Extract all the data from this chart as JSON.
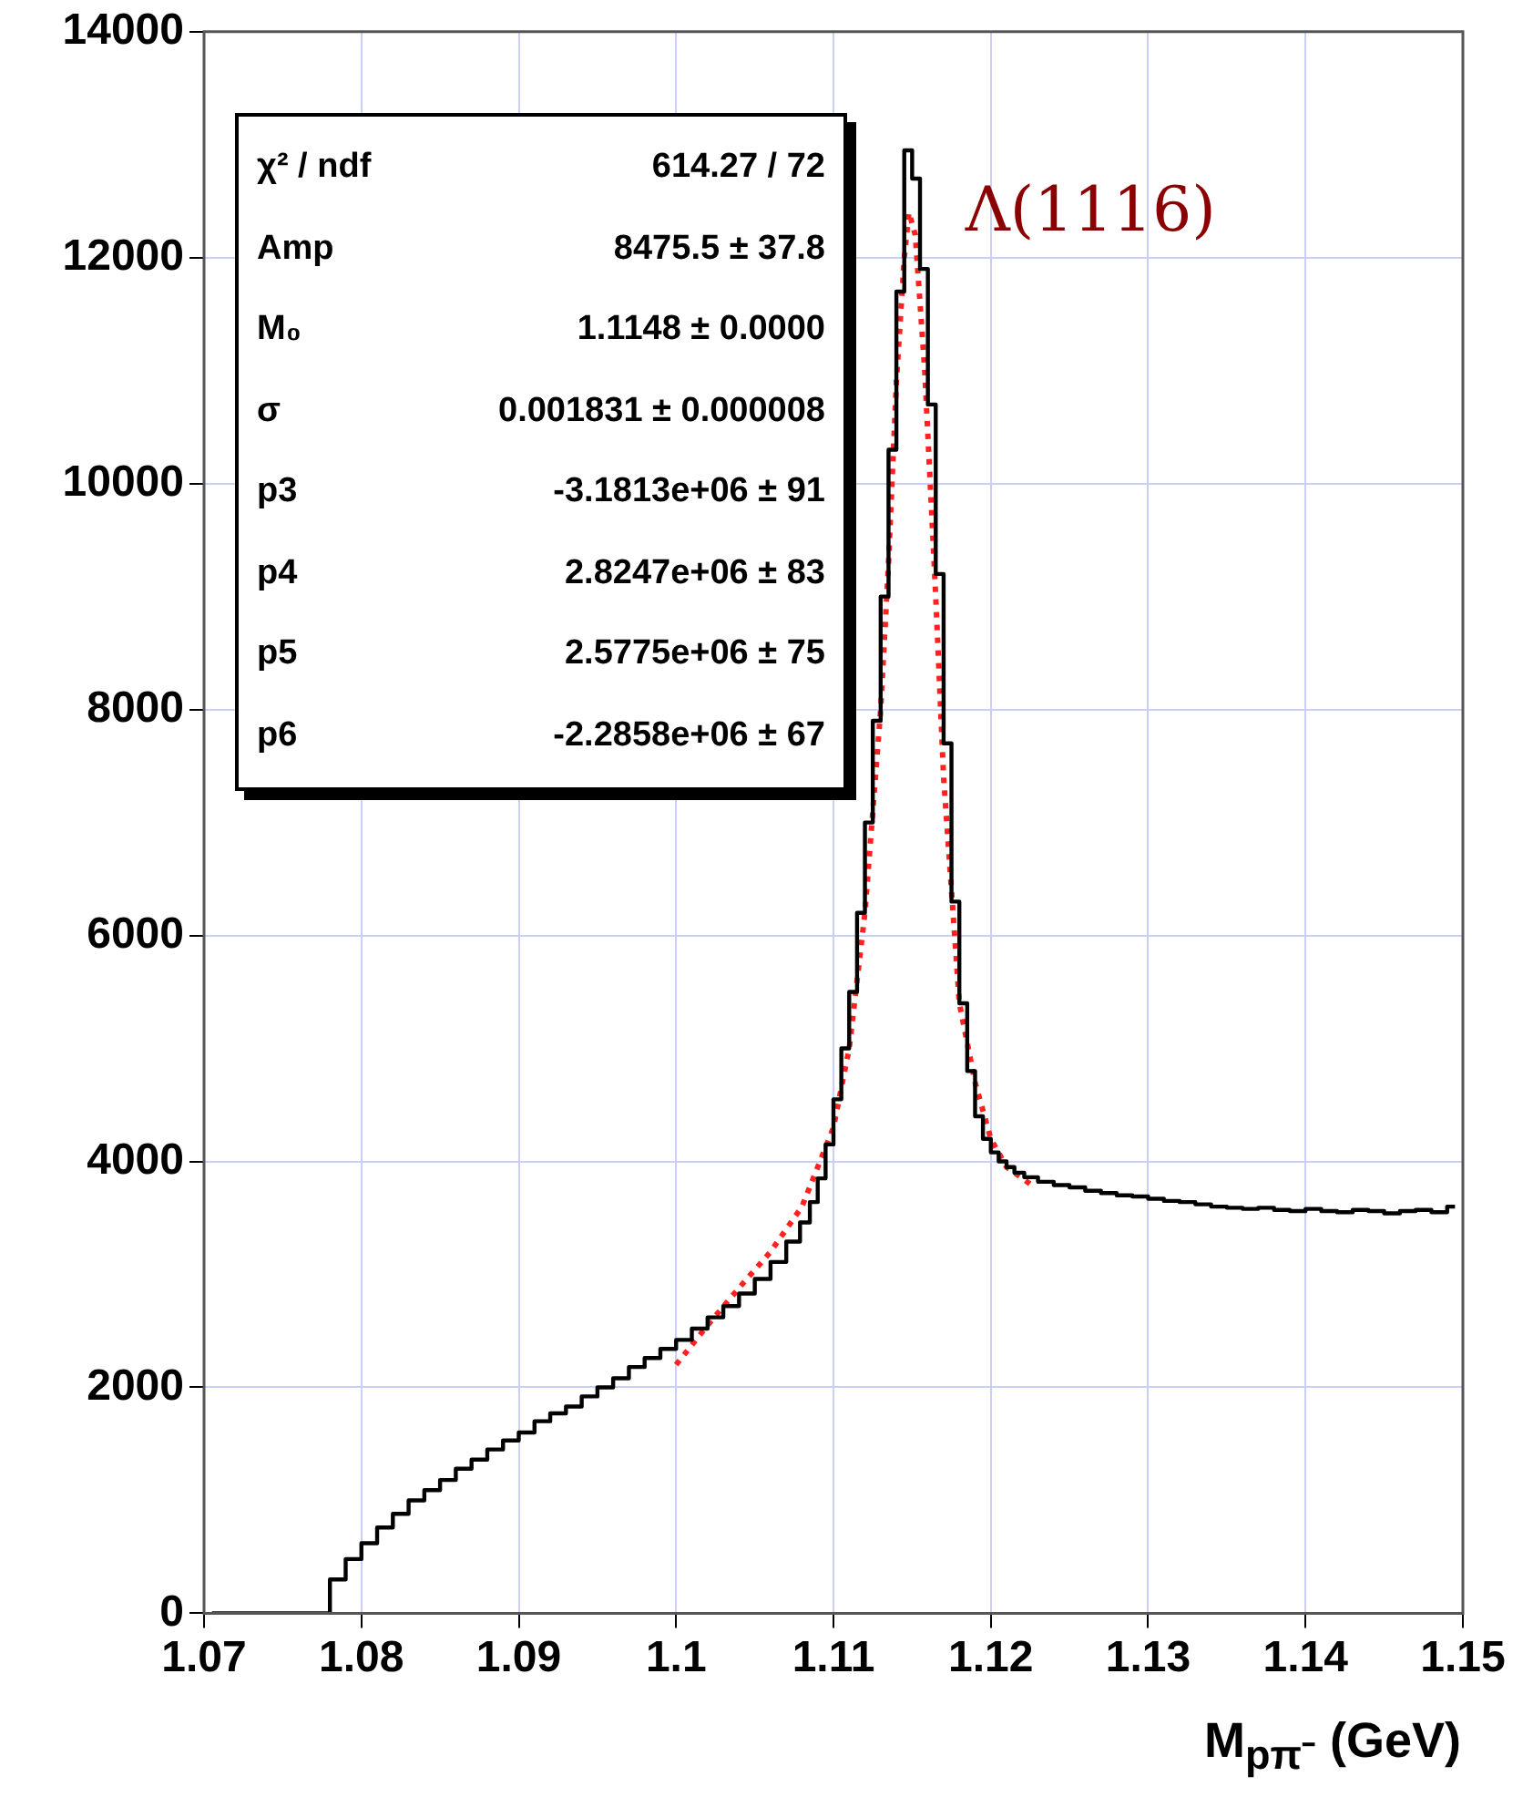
{
  "chart_data": {
    "type": "step",
    "xlabel": "M$_{pπ⁻}$ (GeV)",
    "xlim": [
      1.07,
      1.15
    ],
    "xticks": [
      1.07,
      1.08,
      1.09,
      1.1,
      1.11,
      1.12,
      1.13,
      1.14,
      1.15
    ],
    "ylim": [
      0,
      14000
    ],
    "yticks": [
      0,
      2000,
      4000,
      6000,
      8000,
      10000,
      12000,
      14000
    ],
    "grid": true,
    "legend": false,
    "series": [
      {
        "color": "#000000",
        "x": [
          1.0705,
          1.0715,
          1.0725,
          1.0735,
          1.0745,
          1.0755,
          1.0765,
          1.0775,
          1.0785,
          1.0795,
          1.0805,
          1.0815,
          1.0825,
          1.0835,
          1.0845,
          1.0855,
          1.0865,
          1.0875,
          1.0885,
          1.0895,
          1.0905,
          1.0915,
          1.0925,
          1.0935,
          1.0945,
          1.0955,
          1.0965,
          1.0975,
          1.0985,
          1.0995,
          1.1005,
          1.1015,
          1.1025,
          1.1035,
          1.1045,
          1.1055,
          1.1065,
          1.1075,
          1.10825,
          1.10875,
          1.10925,
          1.10975,
          1.11025,
          1.11075,
          1.11125,
          1.11175,
          1.11225,
          1.11275,
          1.11325,
          1.11375,
          1.11425,
          1.11475,
          1.11525,
          1.11575,
          1.11625,
          1.11675,
          1.11725,
          1.11775,
          1.11825,
          1.11875,
          1.11925,
          1.11975,
          1.12025,
          1.12075,
          1.12125,
          1.12175,
          1.1225,
          1.1235,
          1.1245,
          1.1255,
          1.1265,
          1.1275,
          1.1285,
          1.1295,
          1.1305,
          1.1315,
          1.1325,
          1.1335,
          1.1345,
          1.1355,
          1.1365,
          1.1375,
          1.1385,
          1.1395,
          1.1405,
          1.1415,
          1.1425,
          1.1435,
          1.1445,
          1.1455,
          1.1465,
          1.1475,
          1.1485,
          1.1495
        ],
        "values": [
          0,
          0,
          0,
          0,
          0,
          0,
          0,
          0,
          300,
          480,
          620,
          760,
          880,
          1000,
          1090,
          1180,
          1280,
          1360,
          1450,
          1530,
          1600,
          1700,
          1770,
          1830,
          1920,
          2000,
          2080,
          2180,
          2260,
          2340,
          2420,
          2520,
          2620,
          2720,
          2830,
          2960,
          3110,
          3290,
          3460,
          3640,
          3850,
          4150,
          4550,
          5000,
          5500,
          6200,
          7000,
          7900,
          9000,
          10300,
          11700,
          12950,
          12700,
          11900,
          10700,
          9200,
          7700,
          6300,
          5400,
          4800,
          4400,
          4200,
          4080,
          4000,
          3950,
          3900,
          3860,
          3820,
          3790,
          3770,
          3740,
          3720,
          3700,
          3690,
          3670,
          3650,
          3640,
          3620,
          3600,
          3590,
          3580,
          3590,
          3570,
          3560,
          3580,
          3560,
          3550,
          3570,
          3560,
          3540,
          3560,
          3570,
          3550,
          3600
        ]
      },
      {
        "type": "line",
        "color": "#ff2020",
        "line_style": "dotted",
        "marker": "none",
        "x": [
          1.1,
          1.102,
          1.104,
          1.106,
          1.108,
          1.11,
          1.111,
          1.112,
          1.113,
          1.1135,
          1.114,
          1.1145,
          1.1148,
          1.1152,
          1.1158,
          1.1165,
          1.117,
          1.118,
          1.119,
          1.12,
          1.121,
          1.1225
        ],
        "values": [
          2200,
          2550,
          2880,
          3200,
          3600,
          4300,
          5000,
          6200,
          8000,
          9300,
          10900,
          12000,
          12400,
          12200,
          11000,
          9000,
          7400,
          5400,
          4700,
          4200,
          3950,
          3800
        ]
      }
    ],
    "annotations": [
      "χ² / ndf",
      "614.27 / 72",
      "Amp",
      "8475.5 ± 37.8",
      "M₀",
      "1.1148 ± 0.0000",
      "σ",
      "0.001831 ± 0.000008",
      "p3",
      "-3.1813e+06 ± 91",
      "p4",
      "2.8247e+06 ± 83",
      "p5",
      "2.5775e+06 ± 75",
      "p6",
      "-2.2858e+06 ± 67",
      {
        "text": "Λ(1116)",
        "x": 1.1149,
        "y": 12950
      }
    ]
  }
}
